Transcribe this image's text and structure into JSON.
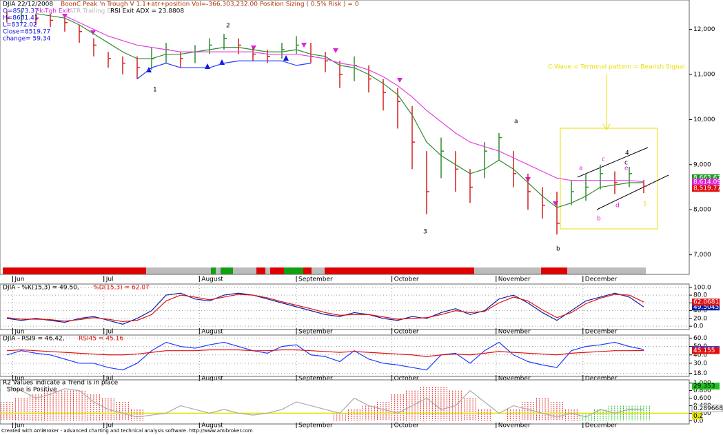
{
  "chart_data": [
    {
      "type": "ohlc",
      "title": "DJIA 22/12/2008",
      "subtitle": "BoonC Peak 'n Trough V 1.1+atr+position Vol=-366,303,232.00 Position Sizing ( 0.5% Risk ) = 0",
      "info": [
        "O=8573.37",
        "Pk-Tgh Exit",
        "ATR Trailing Exit",
        "RSI Exit ADX = 23.8808"
      ],
      "info_lines": [
        "H=8601.41",
        "L=8372.02",
        "Close=8519.77",
        "change= 59.34"
      ],
      "xlim": [
        0,
        44
      ],
      "xticks": [
        {
          "value": 0.4,
          "label": "Jun"
        },
        {
          "value": 6.7,
          "label": "Jul"
        },
        {
          "value": 13.3,
          "label": "August"
        },
        {
          "value": 20,
          "label": "September"
        },
        {
          "value": 26.6,
          "label": "October"
        },
        {
          "value": 33.8,
          "label": "November"
        },
        {
          "value": 39.8,
          "label": "December"
        }
      ],
      "ylim": [
        6750,
        12620
      ],
      "yticks": [
        {
          "value": 7000,
          "label": "7,000"
        },
        {
          "value": 8000,
          "label": "8,000"
        },
        {
          "value": 9000,
          "label": "9,000"
        },
        {
          "value": 10000,
          "label": "10,000"
        },
        {
          "value": 11000,
          "label": "11,000"
        },
        {
          "value": 12000,
          "label": "12,000"
        }
      ],
      "high": [
        12400,
        12450,
        12350,
        12350,
        12250,
        12100,
        11800,
        11500,
        11400,
        11400,
        11600,
        11700,
        11500,
        11650,
        11800,
        11900,
        11800,
        11600,
        11550,
        11700,
        11850,
        11700,
        11500,
        11300,
        11400,
        11200,
        10900,
        10700,
        10300,
        9300,
        9600,
        9300,
        8900,
        9500,
        9700,
        9300,
        8800,
        8500,
        8400,
        8650,
        8800,
        9000,
        8850,
        8950,
        8660
      ],
      "low": [
        12150,
        12150,
        12100,
        12050,
        11950,
        11700,
        11400,
        11150,
        11000,
        10900,
        11100,
        11250,
        11150,
        11250,
        11450,
        11550,
        11450,
        11300,
        11250,
        11350,
        11450,
        11250,
        11050,
        10700,
        10850,
        10600,
        10200,
        9800,
        8900,
        7900,
        8700,
        8400,
        8150,
        8700,
        9100,
        8500,
        8000,
        7800,
        7450,
        8100,
        8200,
        8450,
        8350,
        8500,
        8370
      ],
      "close": [
        12250,
        12300,
        12250,
        12200,
        12150,
        11950,
        11650,
        11350,
        11250,
        11150,
        11350,
        11550,
        11350,
        11500,
        11650,
        11800,
        11650,
        11450,
        11400,
        11550,
        11650,
        11400,
        11300,
        11000,
        11200,
        10900,
        10600,
        10400,
        9500,
        8400,
        9300,
        8900,
        8500,
        9300,
        9600,
        8800,
        8400,
        8100,
        7700,
        8400,
        8500,
        8800,
        8600,
        8800,
        8520
      ],
      "up_color": "#2e8b2e",
      "down_color": "#d21e1e",
      "series": [
        {
          "color": "#2e8b2e",
          "values": [
            null,
            null,
            12350,
            12300,
            12250,
            12100,
            11900,
            11700,
            11500,
            11350,
            11350,
            11450,
            11450,
            11500,
            11550,
            11600,
            11600,
            11550,
            11500,
            11500,
            11550,
            11450,
            11400,
            11200,
            11150,
            11000,
            10800,
            10550,
            10100,
            9500,
            9200,
            9000,
            8800,
            8900,
            9100,
            8900,
            8600,
            8300,
            8050,
            8150,
            8300,
            8500,
            8550,
            8600,
            8600
          ]
        },
        {
          "color": "#e040e0",
          "values": [
            null,
            null,
            null,
            null,
            12300,
            12150,
            12000,
            11850,
            11750,
            11650,
            11600,
            11550,
            11500,
            11500,
            11500,
            11500,
            11500,
            11500,
            11450,
            11450,
            11450,
            11400,
            11350,
            11250,
            11200,
            11100,
            10950,
            10750,
            10500,
            10200,
            9950,
            9700,
            9500,
            9400,
            9300,
            9150,
            9000,
            8850,
            8700,
            8650,
            8650,
            8650,
            8650,
            8650,
            8620
          ]
        },
        {
          "color": "#1e3cff",
          "values": [
            null,
            null,
            null,
            null,
            null,
            null,
            null,
            null,
            null,
            10900,
            11150,
            11250,
            11150,
            11150,
            11150,
            11250,
            11300,
            11300,
            11300,
            11300,
            11200,
            11250,
            null,
            null,
            null,
            null,
            null,
            null,
            null,
            null,
            null,
            null,
            null,
            null,
            null,
            null,
            null,
            null,
            null,
            null,
            null,
            null,
            null,
            null,
            null
          ]
        }
      ],
      "price_labels": [
        {
          "value": 8663.67,
          "label": "8,663.67",
          "color": "#1a9c1a"
        },
        {
          "value": 8614.09,
          "label": "8,614.09",
          "color": "#e020e0"
        },
        {
          "value": 8519.77,
          "label": "8,519.77",
          "color": "#e01010"
        }
      ],
      "annotations": [
        "1",
        "2",
        "3",
        "4",
        "a",
        "b",
        "c",
        "C-Wave = Terminal pattern = Bearish Signal",
        "a",
        "b",
        "c",
        "d",
        "e",
        "1"
      ]
    },
    {
      "type": "line",
      "title": "DJIA - %K(15,3) = 49.50,",
      "title2": "%D(15,3) = 62.07",
      "ylim": [
        -5,
        105
      ],
      "yticks": [
        {
          "value": 0,
          "label": "0.0"
        },
        {
          "value": 20,
          "label": "20.0"
        },
        {
          "value": 40,
          "label": "40.0"
        },
        {
          "value": 60,
          "label": "60.0"
        },
        {
          "value": 80,
          "label": "80.0"
        },
        {
          "value": 100,
          "label": "100.0"
        }
      ],
      "grid": true,
      "series": [
        {
          "color": "#0a1ea0",
          "values": [
            20,
            15,
            20,
            15,
            10,
            20,
            25,
            15,
            5,
            20,
            40,
            80,
            85,
            70,
            65,
            80,
            85,
            80,
            70,
            60,
            50,
            40,
            30,
            25,
            35,
            30,
            20,
            15,
            25,
            20,
            35,
            45,
            30,
            40,
            70,
            80,
            60,
            35,
            15,
            40,
            65,
            75,
            85,
            75,
            49.5045
          ],
          "last_label": "49.5045"
        },
        {
          "color": "#e01010",
          "values": [
            22,
            18,
            18,
            17,
            13,
            17,
            22,
            18,
            12,
            15,
            30,
            65,
            80,
            75,
            68,
            75,
            82,
            80,
            73,
            63,
            54,
            45,
            35,
            28,
            30,
            30,
            24,
            18,
            20,
            22,
            30,
            40,
            35,
            38,
            60,
            75,
            65,
            42,
            22,
            35,
            58,
            72,
            82,
            80,
            62.0681
          ],
          "last_label": "62.0681"
        }
      ]
    },
    {
      "type": "line",
      "title": "DJIA - RSI9 = 46.42,",
      "title2": "RSI45 = 45.16",
      "ylim": [
        16,
        62
      ],
      "yticks": [
        {
          "value": 18,
          "label": "18.0"
        },
        {
          "value": 30,
          "label": "30.0"
        },
        {
          "value": 40,
          "label": "40.0"
        },
        {
          "value": 50,
          "label": "50.0"
        },
        {
          "value": 60,
          "label": "60.0"
        }
      ],
      "grid": true,
      "series": [
        {
          "color": "#1e3cff",
          "values": [
            40,
            45,
            42,
            40,
            35,
            30,
            30,
            25,
            22,
            30,
            45,
            55,
            50,
            48,
            52,
            55,
            50,
            45,
            42,
            50,
            52,
            40,
            38,
            32,
            45,
            35,
            30,
            28,
            25,
            22,
            40,
            42,
            30,
            45,
            55,
            40,
            32,
            28,
            25,
            45,
            50,
            52,
            55,
            50,
            46.4154
          ],
          "last_label": "46.4154"
        },
        {
          "color": "#e01010",
          "values": [
            45,
            46,
            45,
            44,
            43,
            42,
            41,
            40,
            40,
            41,
            43,
            45,
            45,
            45,
            46,
            46,
            46,
            45,
            45,
            46,
            46,
            45,
            44,
            43,
            44,
            43,
            42,
            41,
            40,
            38,
            40,
            41,
            40,
            42,
            44,
            43,
            42,
            41,
            40,
            42,
            43,
            44,
            45,
            45,
            45.155
          ],
          "last_label": "45.155"
        }
      ]
    },
    {
      "type": "bar_line",
      "title": "R2 Values indicate a Trend is in place",
      "subtitle": "Slope is Positive",
      "ylim": [
        -0.05,
        1.05
      ],
      "yticks": [
        {
          "value": 0,
          "label": "0.0"
        },
        {
          "value": 0.2,
          "label": "0.200"
        },
        {
          "value": 0.4,
          "label": "0.400"
        },
        {
          "value": 0.6,
          "label": "0.600"
        },
        {
          "value": 0.8,
          "label": "0.800"
        },
        {
          "value": 1,
          "label": "1.000"
        }
      ],
      "grid": true,
      "marker_label": "29.353",
      "bars": [
        {
          "color": "#e03030",
          "values": [
            0.5,
            0.6,
            0.7,
            0.8,
            0.8,
            0.8,
            0.7,
            0.6,
            0.5,
            0.3,
            null,
            null,
            null,
            null,
            null,
            null,
            null,
            null,
            null,
            null,
            null,
            null,
            null,
            0.2,
            0.3,
            0.4,
            0.5,
            0.7,
            0.8,
            0.9,
            0.9,
            0.8,
            0.6,
            0.3,
            null,
            0.3,
            0.5,
            0.6,
            0.5,
            0.3,
            null,
            null,
            null,
            null,
            null
          ]
        },
        {
          "color": "#22c022",
          "values": [
            null,
            null,
            null,
            null,
            null,
            null,
            null,
            null,
            null,
            null,
            null,
            null,
            null,
            null,
            null,
            null,
            null,
            null,
            null,
            null,
            null,
            null,
            null,
            null,
            null,
            null,
            null,
            null,
            null,
            null,
            null,
            null,
            null,
            null,
            null,
            null,
            null,
            null,
            null,
            null,
            0.2,
            0.3,
            0.4,
            0.4,
            0.4
          ]
        }
      ],
      "series": [
        {
          "color": "#ffffff",
          "values": [
            0.9,
            0.8,
            0.6,
            0.7,
            0.85,
            0.8,
            0.5,
            0.3,
            0.2,
            0.1,
            0.15,
            0.2,
            0.4,
            0.3,
            0.2,
            0.3,
            0.2,
            0.15,
            0.2,
            0.3,
            0.5,
            0.4,
            0.3,
            0.2,
            0.6,
            0.4,
            0.3,
            0.2,
            0.4,
            0.6,
            0.3,
            0.4,
            0.8,
            0.5,
            0.2,
            0.4,
            0.3,
            0.2,
            0.1,
            0.2,
            0.1,
            0.3,
            0.2,
            0.3,
            0.289668
          ],
          "last_label": "0.289668"
        }
      ],
      "threshold": {
        "value": 0.2,
        "label": "0.2",
        "color": "#e8e000"
      }
    }
  ],
  "footer": "Created with AmiBroker - advanced charting and technical analysis software. http://www.amibroker.com"
}
